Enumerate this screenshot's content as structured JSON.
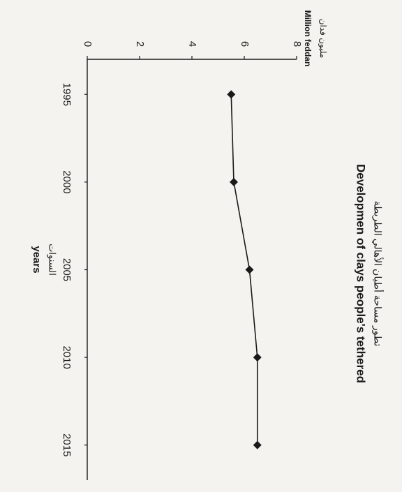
{
  "chart_data": {
    "type": "line",
    "title": "Developmen of clays people's tethered",
    "title_ar": "تطور مساحة أطيان الأهالي الطربطة",
    "xlabel": "years",
    "xlabel_ar": "السنوات",
    "ylabel": "Million feddan",
    "ylabel_ar": "مليون فدان",
    "x": [
      1995,
      2000,
      2005,
      2010,
      2015
    ],
    "xlim": [
      1993,
      2017
    ],
    "ylim": [
      0,
      8
    ],
    "yticks": [
      0,
      2,
      4,
      6,
      8
    ],
    "series": [
      {
        "values": [
          5.5,
          5.6,
          6.2,
          6.5,
          6.5
        ]
      }
    ],
    "marker": "diamond",
    "orientation": "rotated-90-clockwise",
    "grid": false,
    "colors": {
      "line": "#1a1a1a",
      "marker": "#1a1a1a",
      "axis": "#1a1a1a"
    }
  }
}
